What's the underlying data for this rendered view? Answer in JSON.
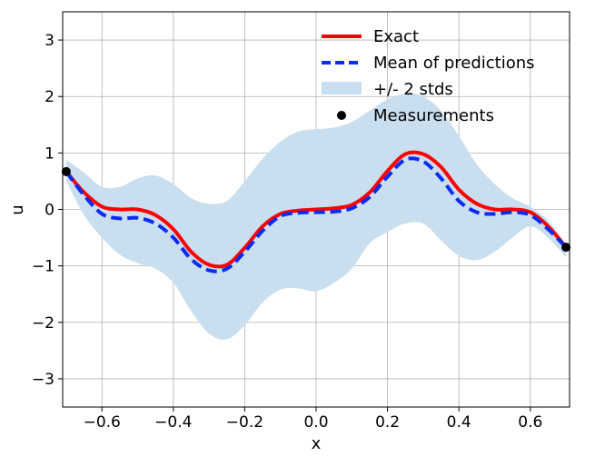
{
  "chart_data": {
    "type": "line",
    "xlabel": "x",
    "ylabel": "u",
    "xlim": [
      -0.71,
      0.71
    ],
    "ylim": [
      -3.5,
      3.5
    ],
    "xticks": [
      -0.6,
      -0.4,
      -0.2,
      0.0,
      0.2,
      0.4,
      0.6
    ],
    "xtick_labels": [
      "−0.6",
      "−0.4",
      "−0.2",
      "0.0",
      "0.2",
      "0.4",
      "0.6"
    ],
    "yticks": [
      -3,
      -2,
      -1,
      0,
      1,
      2,
      3
    ],
    "ytick_labels": [
      "−3",
      "−2",
      "−1",
      "0",
      "1",
      "2",
      "3"
    ],
    "grid": true,
    "legend_position": "top-right",
    "series": [
      {
        "name": "Exact",
        "style": "solid",
        "color": "#ff0000",
        "x": [
          -0.7,
          -0.65,
          -0.6,
          -0.55,
          -0.5,
          -0.45,
          -0.4,
          -0.35,
          -0.3,
          -0.25,
          -0.2,
          -0.15,
          -0.1,
          -0.05,
          0.0,
          0.05,
          0.1,
          0.15,
          0.2,
          0.25,
          0.3,
          0.35,
          0.4,
          0.45,
          0.5,
          0.55,
          0.6,
          0.65,
          0.7
        ],
        "y": [
          0.67,
          0.3,
          0.05,
          0.0,
          0.0,
          -0.1,
          -0.35,
          -0.75,
          -0.98,
          -0.98,
          -0.68,
          -0.3,
          -0.08,
          -0.02,
          0.0,
          0.02,
          0.08,
          0.3,
          0.68,
          0.98,
          0.98,
          0.75,
          0.35,
          0.1,
          0.0,
          0.0,
          -0.05,
          -0.3,
          -0.67
        ]
      },
      {
        "name": "Mean of predictions",
        "style": "dashed",
        "color": "#0a2cf0",
        "x": [
          -0.7,
          -0.65,
          -0.6,
          -0.55,
          -0.5,
          -0.45,
          -0.4,
          -0.35,
          -0.3,
          -0.25,
          -0.2,
          -0.15,
          -0.1,
          -0.05,
          0.0,
          0.05,
          0.1,
          0.15,
          0.2,
          0.25,
          0.3,
          0.35,
          0.4,
          0.45,
          0.5,
          0.55,
          0.6,
          0.65,
          0.7
        ],
        "y": [
          0.67,
          0.25,
          -0.08,
          -0.16,
          -0.15,
          -0.25,
          -0.5,
          -0.88,
          -1.08,
          -1.05,
          -0.75,
          -0.38,
          -0.12,
          -0.06,
          -0.05,
          -0.04,
          0.02,
          0.22,
          0.58,
          0.88,
          0.85,
          0.55,
          0.15,
          -0.05,
          -0.08,
          -0.05,
          -0.1,
          -0.35,
          -0.67
        ]
      }
    ],
    "band": {
      "name": "+/- 2 stds",
      "color": "#c9deee",
      "x": [
        -0.7,
        -0.65,
        -0.6,
        -0.55,
        -0.5,
        -0.45,
        -0.4,
        -0.35,
        -0.3,
        -0.25,
        -0.2,
        -0.15,
        -0.1,
        -0.05,
        0.0,
        0.05,
        0.1,
        0.15,
        0.2,
        0.25,
        0.3,
        0.35,
        0.4,
        0.45,
        0.5,
        0.55,
        0.6,
        0.65,
        0.7
      ],
      "upper": [
        0.88,
        0.65,
        0.4,
        0.4,
        0.55,
        0.6,
        0.45,
        0.2,
        0.1,
        0.15,
        0.5,
        0.9,
        1.2,
        1.38,
        1.42,
        1.45,
        1.55,
        1.75,
        1.95,
        2.05,
        2.0,
        1.75,
        1.3,
        0.8,
        0.45,
        0.2,
        0.05,
        -0.2,
        -0.62
      ],
      "lower": [
        0.5,
        -0.1,
        -0.5,
        -0.8,
        -0.95,
        -1.05,
        -1.3,
        -1.8,
        -2.2,
        -2.3,
        -2.05,
        -1.65,
        -1.42,
        -1.4,
        -1.45,
        -1.3,
        -1.05,
        -0.6,
        -0.4,
        -0.25,
        -0.25,
        -0.55,
        -0.82,
        -0.9,
        -0.75,
        -0.5,
        -0.3,
        -0.5,
        -0.85
      ]
    },
    "measurements": {
      "name": "Measurements",
      "color": "#000000",
      "x": [
        -0.7,
        0.7
      ],
      "y": [
        0.67,
        -0.67
      ]
    }
  }
}
